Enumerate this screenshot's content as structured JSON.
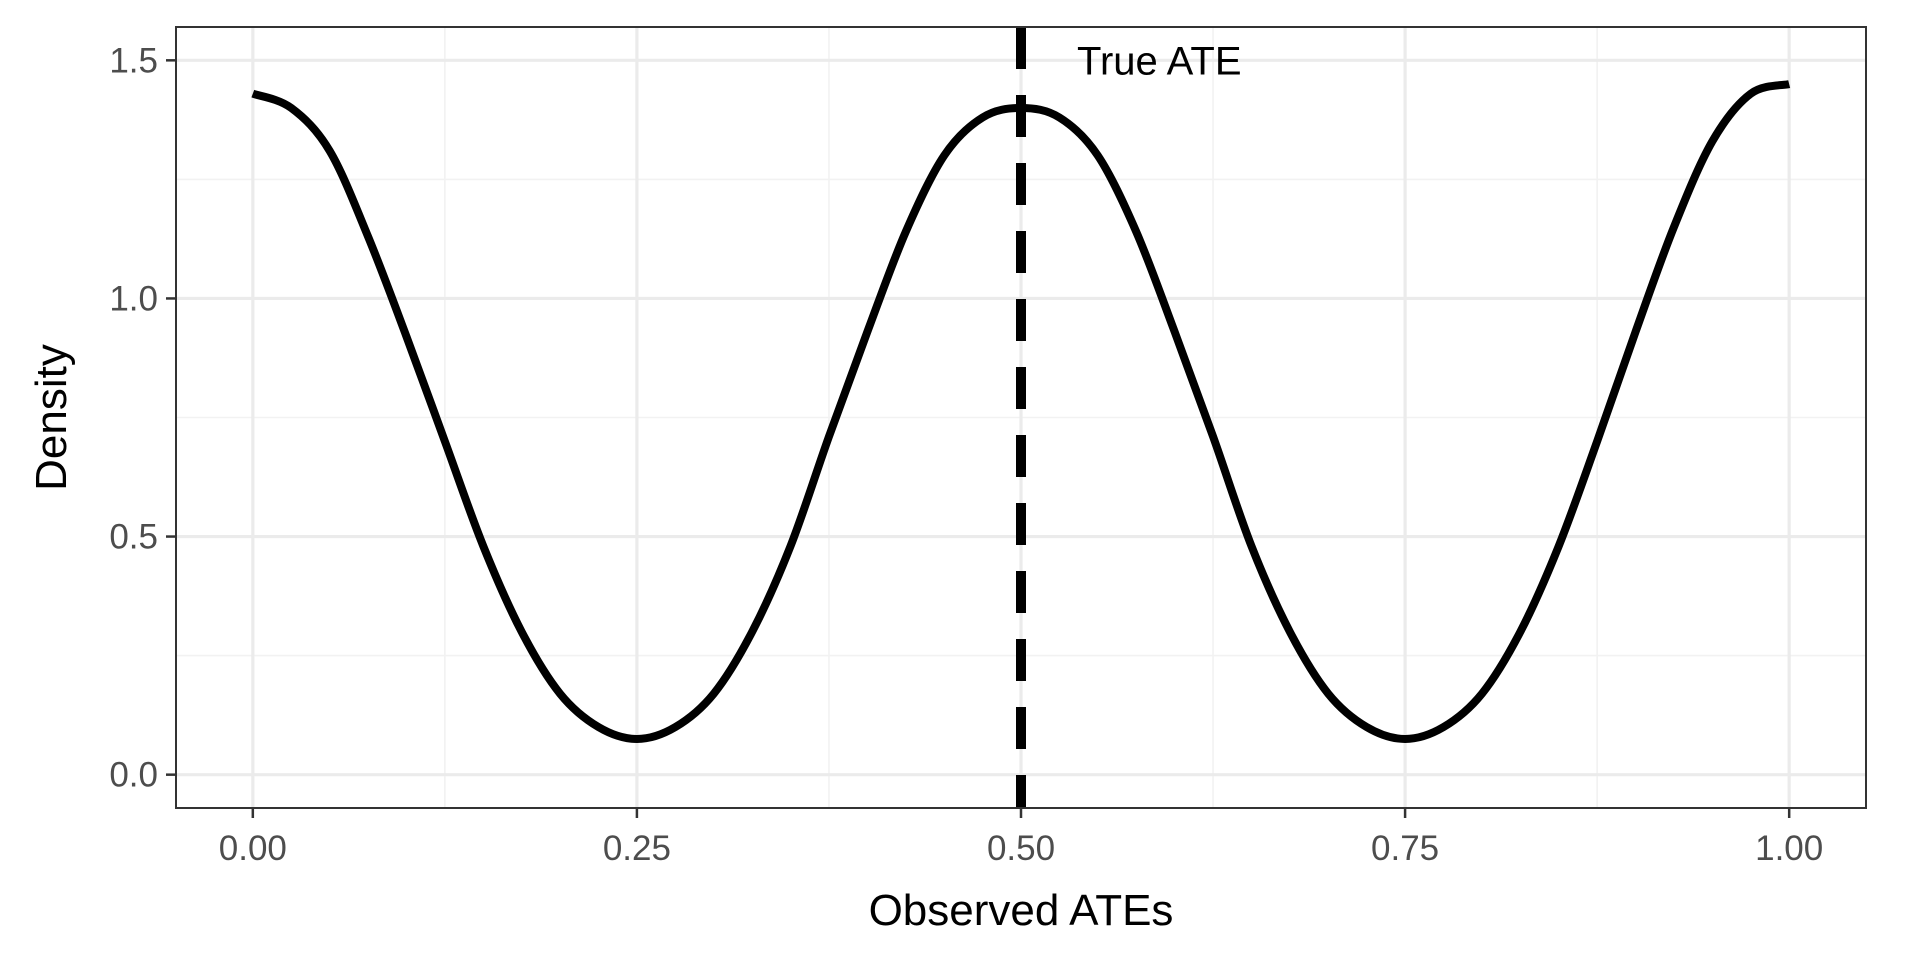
{
  "chart_data": {
    "type": "line",
    "title": "",
    "xlabel": "Observed ATEs",
    "ylabel": "Density",
    "xlim": [
      -0.05,
      1.05
    ],
    "ylim": [
      -0.07,
      1.57
    ],
    "x_ticks": [
      {
        "value": 0.0,
        "label": "0.00"
      },
      {
        "value": 0.25,
        "label": "0.25"
      },
      {
        "value": 0.5,
        "label": "0.50"
      },
      {
        "value": 0.75,
        "label": "0.75"
      },
      {
        "value": 1.0,
        "label": "1.00"
      }
    ],
    "y_ticks": [
      {
        "value": 0.0,
        "label": "0.0"
      },
      {
        "value": 0.5,
        "label": "0.5"
      },
      {
        "value": 1.0,
        "label": "1.0"
      },
      {
        "value": 1.5,
        "label": "1.5"
      }
    ],
    "x_minor_ticks": [
      0.125,
      0.375,
      0.625,
      0.875
    ],
    "y_minor_ticks": [
      0.25,
      0.75,
      1.25
    ],
    "grid": true,
    "legend": "none",
    "series": [
      {
        "color": "#000000",
        "x": [
          0.0,
          0.025,
          0.05,
          0.075,
          0.1,
          0.125,
          0.15,
          0.175,
          0.2,
          0.225,
          0.25,
          0.275,
          0.3,
          0.325,
          0.35,
          0.375,
          0.4,
          0.425,
          0.45,
          0.475,
          0.5,
          0.525,
          0.55,
          0.575,
          0.6,
          0.625,
          0.65,
          0.675,
          0.7,
          0.725,
          0.75,
          0.775,
          0.8,
          0.825,
          0.85,
          0.875,
          0.9,
          0.925,
          0.95,
          0.975,
          1.0
        ],
        "y": [
          1.43,
          1.4,
          1.31,
          1.13,
          0.92,
          0.7,
          0.48,
          0.3,
          0.17,
          0.1,
          0.075,
          0.1,
          0.17,
          0.3,
          0.48,
          0.71,
          0.93,
          1.14,
          1.3,
          1.38,
          1.4,
          1.38,
          1.3,
          1.14,
          0.93,
          0.71,
          0.48,
          0.3,
          0.17,
          0.1,
          0.075,
          0.1,
          0.17,
          0.3,
          0.48,
          0.7,
          0.93,
          1.15,
          1.33,
          1.43,
          1.45
        ]
      }
    ],
    "vline": {
      "x": 0.5,
      "style": "dashed",
      "color": "#000000"
    },
    "annotations": [
      {
        "text": "True ATE",
        "x": 0.5,
        "y": 1.5
      }
    ],
    "colors": {
      "panel_border": "#333333",
      "grid_major": "#ebebeb",
      "grid_minor": "#f2f2f2",
      "tick_text": "#4d4d4d",
      "line": "#000000"
    }
  }
}
